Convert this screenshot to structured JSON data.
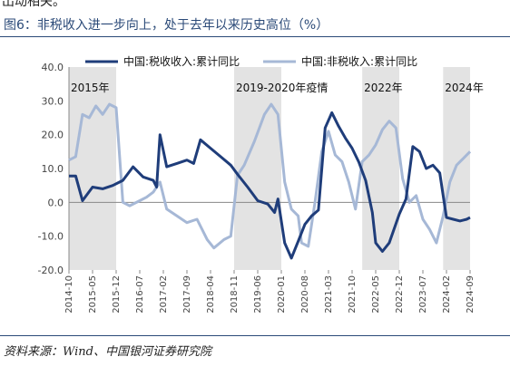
{
  "page": {
    "top_fragment": "出动相关。",
    "figure_title": "图6：非税收入进一步向上，处于去年以来历史高位（%）",
    "source": "资料来源：Wind、中国银河证券研究院"
  },
  "chart_data": {
    "type": "line",
    "title": "",
    "xlabel": "",
    "ylabel": "",
    "ylim": [
      -20,
      40
    ],
    "yticks": [
      40,
      30,
      20,
      10,
      0,
      -10,
      -20
    ],
    "ytick_labels": [
      "40.0",
      "30.0",
      "20.0",
      "10.0",
      "0.0",
      "-10.0",
      "-20.0"
    ],
    "negative_tick_color": "#d0312d",
    "x_start": "2014-10",
    "x_end": "2024-09",
    "xtick_labels": [
      "2014-10",
      "2015-05",
      "2015-12",
      "2016-07",
      "2017-02",
      "2017-09",
      "2018-04",
      "2018-11",
      "2019-06",
      "2020-01",
      "2020-08",
      "2021-03",
      "2021-10",
      "2022-05",
      "2022-12",
      "2023-07",
      "2024-02",
      "2024-09"
    ],
    "grid": false,
    "legend_position": "top",
    "shaded_periods": [
      {
        "label": "2015年",
        "start": "2014-10",
        "end": "2015-12"
      },
      {
        "label": "2019-2020年疫情",
        "start": "2018-11",
        "end": "2020-01"
      },
      {
        "label": "2022年",
        "start": "2022-01",
        "end": "2022-12"
      },
      {
        "label": "2024年",
        "start": "2024-01",
        "end": "2024-09"
      }
    ],
    "series": [
      {
        "name": "中国:税收收入:累计同比",
        "color": "#1f3d7a",
        "points": [
          [
            "2014-10",
            7.8
          ],
          [
            "2014-12",
            7.8
          ],
          [
            "2015-02",
            0.5
          ],
          [
            "2015-05",
            4.5
          ],
          [
            "2015-08",
            4.0
          ],
          [
            "2015-11",
            5.0
          ],
          [
            "2016-02",
            6.5
          ],
          [
            "2016-05",
            10.5
          ],
          [
            "2016-08",
            7.5
          ],
          [
            "2016-11",
            6.5
          ],
          [
            "2016-12",
            4.5
          ],
          [
            "2017-01",
            20.0
          ],
          [
            "2017-03",
            10.5
          ],
          [
            "2017-06",
            11.5
          ],
          [
            "2017-09",
            12.5
          ],
          [
            "2017-11",
            11.5
          ],
          [
            "2018-01",
            18.5
          ],
          [
            "2018-04",
            16.0
          ],
          [
            "2018-07",
            13.5
          ],
          [
            "2018-10",
            11.0
          ],
          [
            "2018-12",
            8.3
          ],
          [
            "2019-03",
            4.5
          ],
          [
            "2019-06",
            0.5
          ],
          [
            "2019-09",
            -0.5
          ],
          [
            "2019-11",
            -3.0
          ],
          [
            "2019-12",
            1.0
          ],
          [
            "2020-02",
            -12.0
          ],
          [
            "2020-04",
            -16.5
          ],
          [
            "2020-06",
            -11.5
          ],
          [
            "2020-08",
            -6.5
          ],
          [
            "2020-10",
            -4.0
          ],
          [
            "2020-12",
            -2.3
          ],
          [
            "2021-02",
            22.0
          ],
          [
            "2021-04",
            26.5
          ],
          [
            "2021-06",
            22.5
          ],
          [
            "2021-08",
            19.0
          ],
          [
            "2021-10",
            16.0
          ],
          [
            "2021-12",
            11.9
          ],
          [
            "2022-02",
            6.5
          ],
          [
            "2022-04",
            -3.0
          ],
          [
            "2022-05",
            -12.0
          ],
          [
            "2022-07",
            -14.5
          ],
          [
            "2022-09",
            -12.0
          ],
          [
            "2022-12",
            -3.5
          ],
          [
            "2023-02",
            1.0
          ],
          [
            "2023-04",
            16.5
          ],
          [
            "2023-06",
            15.0
          ],
          [
            "2023-08",
            10.0
          ],
          [
            "2023-10",
            11.0
          ],
          [
            "2023-12",
            8.7
          ],
          [
            "2024-02",
            -4.5
          ],
          [
            "2024-04",
            -5.0
          ],
          [
            "2024-06",
            -5.5
          ],
          [
            "2024-08",
            -5.0
          ],
          [
            "2024-09",
            -4.5
          ]
        ]
      },
      {
        "name": "中国:非税收入:累计同比",
        "color": "#a6b8d6",
        "points": [
          [
            "2014-10",
            12.5
          ],
          [
            "2014-12",
            13.5
          ],
          [
            "2015-02",
            26.0
          ],
          [
            "2015-04",
            25.0
          ],
          [
            "2015-06",
            28.5
          ],
          [
            "2015-08",
            26.0
          ],
          [
            "2015-10",
            29.0
          ],
          [
            "2015-12",
            28.0
          ],
          [
            "2016-02",
            0.0
          ],
          [
            "2016-04",
            -1.0
          ],
          [
            "2016-07",
            0.5
          ],
          [
            "2016-09",
            1.5
          ],
          [
            "2016-11",
            3.0
          ],
          [
            "2017-01",
            6.0
          ],
          [
            "2017-03",
            -2.0
          ],
          [
            "2017-06",
            -4.0
          ],
          [
            "2017-09",
            -6.0
          ],
          [
            "2017-12",
            -5.0
          ],
          [
            "2018-03",
            -11.0
          ],
          [
            "2018-05",
            -13.5
          ],
          [
            "2018-08",
            -11.0
          ],
          [
            "2018-10",
            -10.0
          ],
          [
            "2018-12",
            8.0
          ],
          [
            "2019-02",
            11.0
          ],
          [
            "2019-05",
            18.0
          ],
          [
            "2019-08",
            26.0
          ],
          [
            "2019-10",
            29.0
          ],
          [
            "2019-12",
            26.0
          ],
          [
            "2020-02",
            6.0
          ],
          [
            "2020-04",
            -2.0
          ],
          [
            "2020-06",
            -4.0
          ],
          [
            "2020-07",
            -12.0
          ],
          [
            "2020-09",
            -13.0
          ],
          [
            "2020-11",
            0.0
          ],
          [
            "2021-01",
            15.0
          ],
          [
            "2021-03",
            21.0
          ],
          [
            "2021-05",
            14.0
          ],
          [
            "2021-07",
            12.0
          ],
          [
            "2021-09",
            6.0
          ],
          [
            "2021-11",
            -2.0
          ],
          [
            "2022-01",
            12.0
          ],
          [
            "2022-03",
            14.0
          ],
          [
            "2022-05",
            17.0
          ],
          [
            "2022-07",
            21.5
          ],
          [
            "2022-09",
            24.0
          ],
          [
            "2022-11",
            22.0
          ],
          [
            "2023-01",
            7.0
          ],
          [
            "2023-03",
            0.0
          ],
          [
            "2023-05",
            2.0
          ],
          [
            "2023-07",
            -5.0
          ],
          [
            "2023-09",
            -8.0
          ],
          [
            "2023-11",
            -12.0
          ],
          [
            "2024-01",
            -4.0
          ],
          [
            "2024-03",
            6.0
          ],
          [
            "2024-05",
            11.0
          ],
          [
            "2024-07",
            13.0
          ],
          [
            "2024-09",
            15.0
          ]
        ]
      }
    ]
  }
}
